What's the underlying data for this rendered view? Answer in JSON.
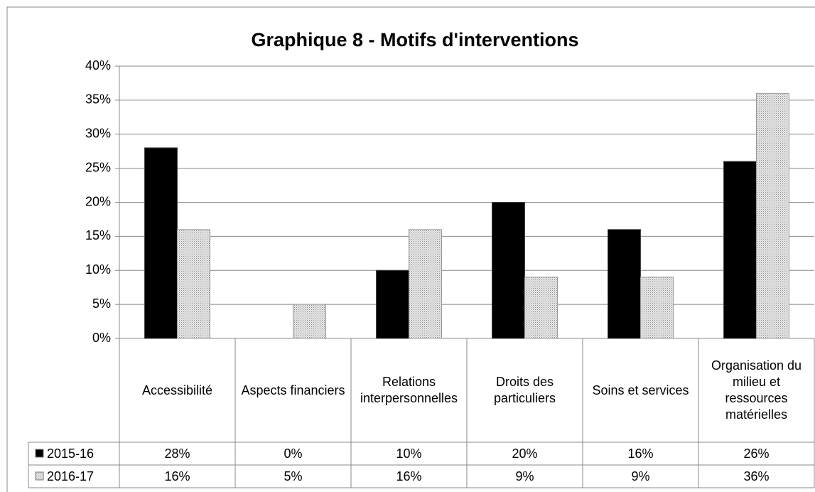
{
  "chart_data": {
    "type": "bar",
    "title": "Graphique 8 - Motifs d'interventions",
    "categories": [
      "Accessibilité",
      "Aspects financiers",
      "Relations interpersonnelles",
      "Droits des particuliers",
      "Soins et services",
      "Organisation du milieu et ressources matérielles"
    ],
    "series": [
      {
        "name": "2015-16",
        "color": "#000000",
        "values": [
          28,
          0,
          10,
          20,
          16,
          26
        ],
        "value_labels": [
          "28%",
          "0%",
          "10%",
          "20%",
          "16%",
          "26%"
        ]
      },
      {
        "name": "2016-17",
        "color": "#d0d0d0",
        "values": [
          16,
          5,
          16,
          9,
          9,
          36
        ],
        "value_labels": [
          "16%",
          "5%",
          "16%",
          "9%",
          "9%",
          "36%"
        ]
      }
    ],
    "ylim": [
      0,
      40
    ],
    "yticks": [
      {
        "value": 0,
        "label": "0%"
      },
      {
        "value": 5,
        "label": "5%"
      },
      {
        "value": 10,
        "label": "10%"
      },
      {
        "value": 15,
        "label": "15%"
      },
      {
        "value": 20,
        "label": "20%"
      },
      {
        "value": 25,
        "label": "25%"
      },
      {
        "value": 30,
        "label": "30%"
      },
      {
        "value": 35,
        "label": "35%"
      },
      {
        "value": 40,
        "label": "40%"
      }
    ],
    "grid": true
  }
}
